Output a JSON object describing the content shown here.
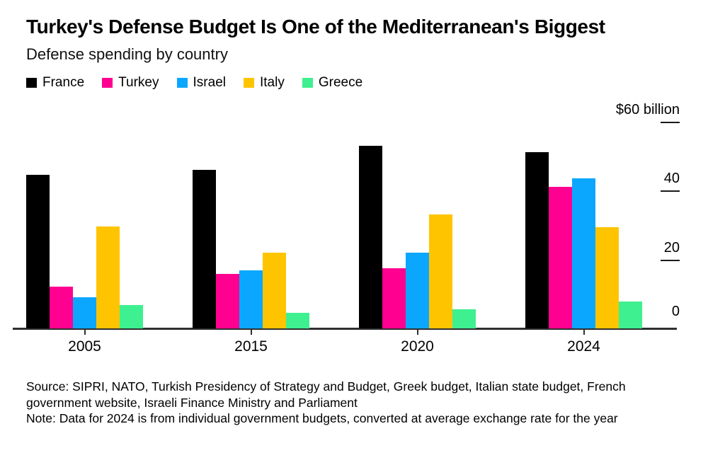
{
  "header": {
    "title": "Turkey's Defense Budget Is One of the Mediterranean's Biggest",
    "subtitle": "Defense spending by country"
  },
  "legend": [
    {
      "label": "France",
      "color": "#000000"
    },
    {
      "label": "Turkey",
      "color": "#FF0090"
    },
    {
      "label": "Israel",
      "color": "#0BA7FF"
    },
    {
      "label": "Italy",
      "color": "#FFC400"
    },
    {
      "label": "Greece",
      "color": "#3EF08F"
    }
  ],
  "chart_data": {
    "type": "bar",
    "categories": [
      "2005",
      "2015",
      "2020",
      "2024"
    ],
    "series": [
      {
        "name": "France",
        "color": "#000000",
        "values": [
          44.5,
          46.0,
          53.0,
          51.0
        ]
      },
      {
        "name": "Turkey",
        "color": "#FF0090",
        "values": [
          12.0,
          15.8,
          17.5,
          41.0
        ]
      },
      {
        "name": "Israel",
        "color": "#0BA7FF",
        "values": [
          9.0,
          16.8,
          22.0,
          43.5
        ]
      },
      {
        "name": "Italy",
        "color": "#FFC400",
        "values": [
          29.5,
          22.0,
          33.0,
          29.3
        ]
      },
      {
        "name": "Greece",
        "color": "#3EF08F",
        "values": [
          6.8,
          4.5,
          5.5,
          7.7
        ]
      }
    ],
    "unit": "billion USD",
    "axis_top_label": "$60 billion",
    "yticks": [
      60,
      40,
      20,
      0
    ],
    "ylim": [
      0,
      60
    ],
    "grid": false,
    "legend_position": "top",
    "title": "Turkey's Defense Budget Is One of the Mediterranean's Biggest",
    "subtitle": "Defense spending by country"
  },
  "footer": {
    "source": "Source: SIPRI, NATO, Turkish Presidency of Strategy and Budget, Greek budget, Italian state budget, French government website, Israeli Finance Ministry and Parliament",
    "note": "Note: Data for 2024 is from individual government budgets, converted at average exchange rate for the year"
  }
}
